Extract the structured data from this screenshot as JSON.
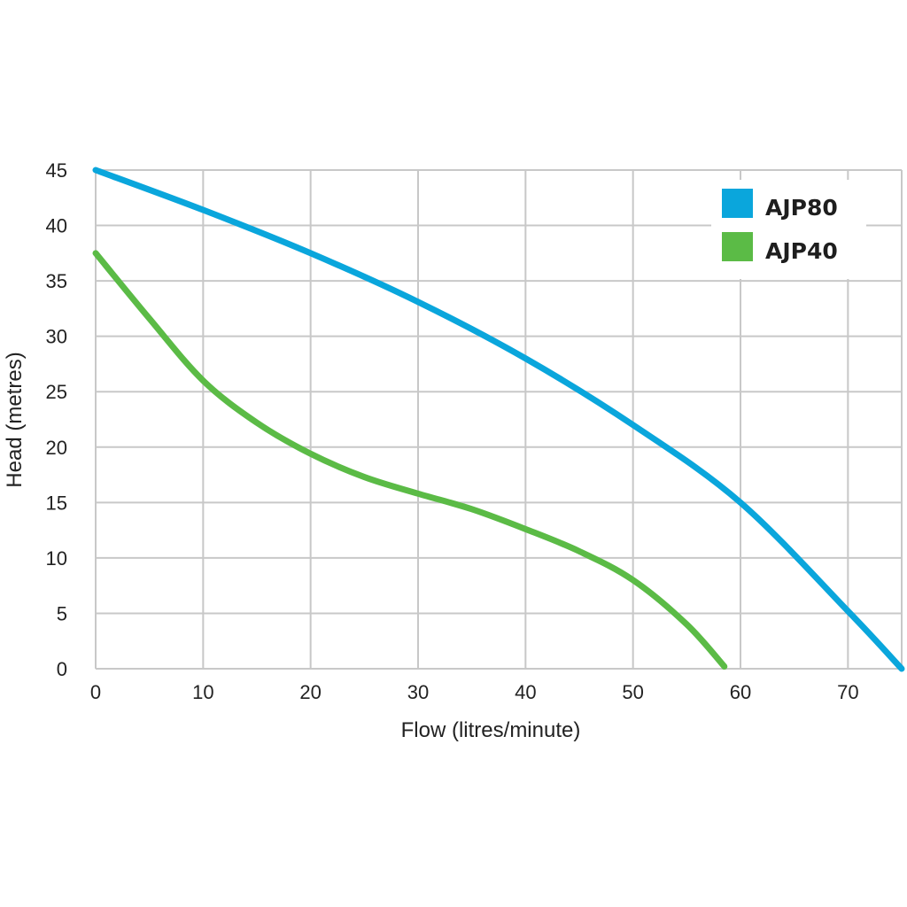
{
  "chart_data": {
    "type": "line",
    "title": "",
    "xlabel": "Flow (litres/minute)",
    "ylabel": "Head (metres)",
    "xlim": [
      0,
      75
    ],
    "ylim": [
      0,
      45
    ],
    "xticks": [
      0,
      10,
      20,
      30,
      40,
      50,
      60,
      70
    ],
    "yticks": [
      0,
      5,
      10,
      15,
      20,
      25,
      30,
      35,
      40,
      45
    ],
    "grid": true,
    "legend_position": "top-right",
    "series": [
      {
        "name": "AJP80",
        "color": "#0aa6dc",
        "x": [
          0,
          10,
          20,
          30,
          40,
          50,
          60,
          70,
          75
        ],
        "y": [
          45,
          41.4,
          37.5,
          33.1,
          28,
          22,
          15,
          5.2,
          0
        ]
      },
      {
        "name": "AJP40",
        "color": "#5bbb46",
        "x": [
          0,
          5,
          10,
          15,
          20,
          25,
          30,
          35,
          40,
          45,
          50,
          55,
          58.5
        ],
        "y": [
          37.5,
          31.6,
          26,
          22.2,
          19.4,
          17.3,
          15.8,
          14.4,
          12.6,
          10.6,
          8,
          4,
          0.2
        ]
      }
    ]
  }
}
